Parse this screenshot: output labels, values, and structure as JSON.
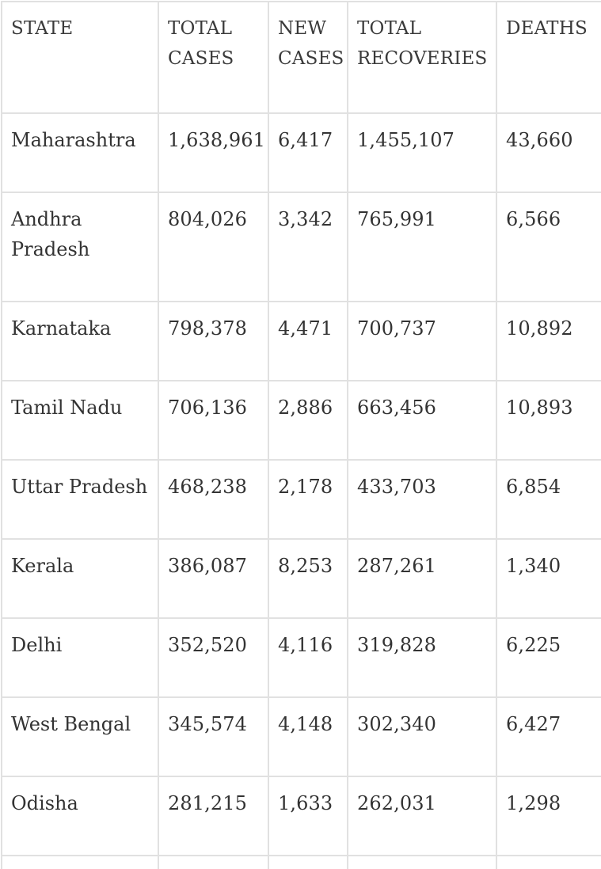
{
  "table": {
    "headers": [
      "STATE",
      "TOTAL CASES",
      "NEW CASES",
      "TOTAL RECOVERIES",
      "DEATHS"
    ],
    "rows": [
      {
        "state": "Maharashtra",
        "total_cases": "1,638,961",
        "new_cases": "6,417",
        "total_recoveries": "1,455,107",
        "deaths": "43,660"
      },
      {
        "state": "Andhra Pradesh",
        "total_cases": "804,026",
        "new_cases": "3,342",
        "total_recoveries": "765,991",
        "deaths": "6,566"
      },
      {
        "state": "Karnataka",
        "total_cases": "798,378",
        "new_cases": "4,471",
        "total_recoveries": "700,737",
        "deaths": "10,892"
      },
      {
        "state": "Tamil Nadu",
        "total_cases": "706,136",
        "new_cases": "2,886",
        "total_recoveries": "663,456",
        "deaths": "10,893"
      },
      {
        "state": "Uttar Pradesh",
        "total_cases": "468,238",
        "new_cases": "2,178",
        "total_recoveries": "433,703",
        "deaths": "6,854"
      },
      {
        "state": "Kerala",
        "total_cases": "386,087",
        "new_cases": "8,253",
        "total_recoveries": "287,261",
        "deaths": "1,340"
      },
      {
        "state": "Delhi",
        "total_cases": "352,520",
        "new_cases": "4,116",
        "total_recoveries": "319,828",
        "deaths": "6,225"
      },
      {
        "state": "West Bengal",
        "total_cases": "345,574",
        "new_cases": "4,148",
        "total_recoveries": "302,340",
        "deaths": "6,427"
      },
      {
        "state": "Odisha",
        "total_cases": "281,215",
        "new_cases": "1,633",
        "total_recoveries": "262,031",
        "deaths": "1,298"
      }
    ]
  },
  "colors": {
    "text": "#333333",
    "border": "#e1e1e1",
    "background": "#ffffff"
  }
}
